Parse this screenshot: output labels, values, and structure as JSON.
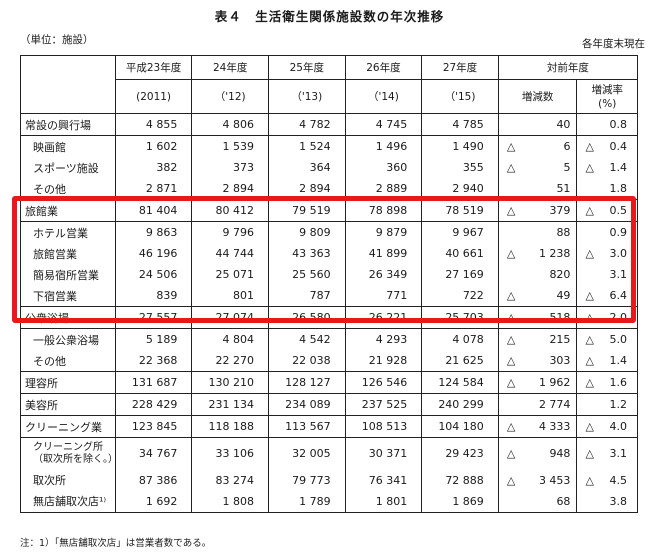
{
  "title": "表４　生活衛生関係施設数の年次推移",
  "unit_label": "（単位：施設）",
  "as_of": "各年度末現在",
  "header": {
    "years": [
      "平成23年度",
      "24年度",
      "25年度",
      "26年度",
      "27年度"
    ],
    "year_sub": [
      "(2011)",
      "（'12)",
      "（'13)",
      "（'14)",
      "（'15)"
    ],
    "compare": "対前年度",
    "inc_count": "増減数",
    "inc_rate_l1": "増減率",
    "inc_rate_l2": "(%)"
  },
  "rows": [
    {
      "label": "常設の興行場",
      "v": [
        "4 855",
        "4 806",
        "4 782",
        "4 745",
        "4 785"
      ],
      "tri_c": "",
      "c": "40",
      "tri_r": "",
      "r": "0.8"
    },
    {
      "label": "映画館",
      "v": [
        "1 602",
        "1 539",
        "1 524",
        "1 496",
        "1 490"
      ],
      "tri_c": "△",
      "c": "6",
      "tri_r": "△",
      "r": "0.4"
    },
    {
      "label": "スポーツ施設",
      "v": [
        "382",
        "373",
        "364",
        "360",
        "355"
      ],
      "tri_c": "△",
      "c": "5",
      "tri_r": "△",
      "r": "1.4"
    },
    {
      "label": "その他",
      "v": [
        "2 871",
        "2 894",
        "2 894",
        "2 889",
        "2 940"
      ],
      "tri_c": "",
      "c": "51",
      "tri_r": "",
      "r": "1.8"
    },
    {
      "label": "旅館業",
      "v": [
        "81 404",
        "80 412",
        "79 519",
        "78 898",
        "78 519"
      ],
      "tri_c": "△",
      "c": "379",
      "tri_r": "△",
      "r": "0.5"
    },
    {
      "label": "ホテル営業",
      "v": [
        "9 863",
        "9 796",
        "9 809",
        "9 879",
        "9 967"
      ],
      "tri_c": "",
      "c": "88",
      "tri_r": "",
      "r": "0.9"
    },
    {
      "label": "旅館営業",
      "v": [
        "46 196",
        "44 744",
        "43 363",
        "41 899",
        "40 661"
      ],
      "tri_c": "△",
      "c": "1 238",
      "tri_r": "△",
      "r": "3.0"
    },
    {
      "label": "簡易宿所営業",
      "v": [
        "24 506",
        "25 071",
        "25 560",
        "26 349",
        "27 169"
      ],
      "tri_c": "",
      "c": "820",
      "tri_r": "",
      "r": "3.1"
    },
    {
      "label": "下宿営業",
      "v": [
        "839",
        "801",
        "787",
        "771",
        "722"
      ],
      "tri_c": "△",
      "c": "49",
      "tri_r": "△",
      "r": "6.4"
    },
    {
      "label": "公衆浴場",
      "v": [
        "27 557",
        "27 074",
        "26 580",
        "26 221",
        "25 703"
      ],
      "tri_c": "△",
      "c": "518",
      "tri_r": "△",
      "r": "2.0"
    },
    {
      "label": "一般公衆浴場",
      "v": [
        "5 189",
        "4 804",
        "4 542",
        "4 293",
        "4 078"
      ],
      "tri_c": "△",
      "c": "215",
      "tri_r": "△",
      "r": "5.0"
    },
    {
      "label": "その他",
      "v": [
        "22 368",
        "22 270",
        "22 038",
        "21 928",
        "21 625"
      ],
      "tri_c": "△",
      "c": "303",
      "tri_r": "△",
      "r": "1.4"
    },
    {
      "label": "理容所",
      "v": [
        "131 687",
        "130 210",
        "128 127",
        "126 546",
        "124 584"
      ],
      "tri_c": "△",
      "c": "1 962",
      "tri_r": "△",
      "r": "1.6"
    },
    {
      "label": "美容所",
      "v": [
        "228 429",
        "231 134",
        "234 089",
        "237 525",
        "240 299"
      ],
      "tri_c": "",
      "c": "2 774",
      "tri_r": "",
      "r": "1.2"
    },
    {
      "label": "クリーニング業",
      "v": [
        "123 845",
        "118 188",
        "113 567",
        "108 513",
        "104 180"
      ],
      "tri_c": "△",
      "c": "4 333",
      "tri_r": "△",
      "r": "4.0"
    },
    {
      "label": "クリーニング所",
      "label2": "（取次所を除く。）",
      "v": [
        "34 767",
        "33 106",
        "32 005",
        "30 371",
        "29 423"
      ],
      "tri_c": "△",
      "c": "948",
      "tri_r": "△",
      "r": "3.1"
    },
    {
      "label": "取次所",
      "v": [
        "87 386",
        "83 274",
        "79 773",
        "76 341",
        "72 888"
      ],
      "tri_c": "△",
      "c": "3 453",
      "tri_r": "△",
      "r": "4.5"
    },
    {
      "label": "無店舗取次店¹⁾",
      "v": [
        "1 692",
        "1 808",
        "1 789",
        "1 801",
        "1 869"
      ],
      "tri_c": "",
      "c": "68",
      "tri_r": "",
      "r": "3.8"
    }
  ],
  "note": "注：1）「無店舗取次店」は営業者数である。",
  "highlight_color": "#e8181c"
}
